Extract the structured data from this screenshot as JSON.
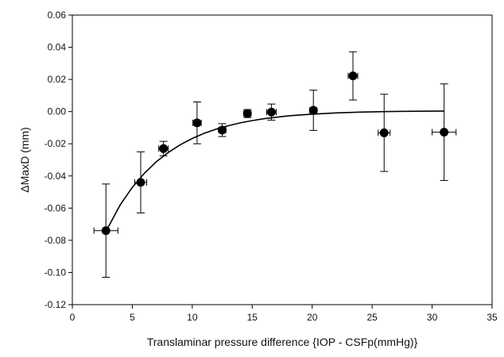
{
  "chart_data": {
    "type": "scatter",
    "xlabel": "Translaminar pressure difference {IOP - CSFp(mmHg)}",
    "ylabel": "ΔMaxD (mm)",
    "xlim": [
      0,
      35
    ],
    "ylim": [
      -0.12,
      0.06
    ],
    "x_ticks": [
      "0",
      "5",
      "10",
      "15",
      "20",
      "25",
      "30",
      "35"
    ],
    "y_ticks": [
      "-0.12",
      "-0.10",
      "-0.08",
      "-0.06",
      "-0.04",
      "-0.02",
      "0.00",
      "0.02",
      "0.04",
      "0.06"
    ],
    "grid": false,
    "legend": false,
    "series": [
      {
        "marker": "filled-circle",
        "color": "#000000",
        "points": [
          {
            "x": 2.8,
            "y": -0.074,
            "y_err": 0.029,
            "x_err": 1.0
          },
          {
            "x": 5.7,
            "y": -0.044,
            "y_err": 0.019,
            "x_err": 0.5
          },
          {
            "x": 7.6,
            "y": -0.023,
            "y_err": 0.0045,
            "x_err": 0.4
          },
          {
            "x": 10.4,
            "y": -0.007,
            "y_err": 0.013,
            "x_err": 0.35
          },
          {
            "x": 12.5,
            "y": -0.0115,
            "y_err": 0.004,
            "x_err": 0.3
          },
          {
            "x": 14.6,
            "y": -0.0012,
            "y_err": 0.0025,
            "x_err": 0.3
          },
          {
            "x": 16.6,
            "y": -0.0003,
            "y_err": 0.005,
            "x_err": 0.4
          },
          {
            "x": 20.1,
            "y": 0.0008,
            "y_err": 0.0125,
            "x_err": 0.3
          },
          {
            "x": 23.4,
            "y": 0.0222,
            "y_err": 0.015,
            "x_err": 0.4
          },
          {
            "x": 26.0,
            "y": -0.0132,
            "y_err": 0.024,
            "x_err": 0.5
          },
          {
            "x": 31.0,
            "y": -0.0128,
            "y_err": 0.03,
            "x_err": 1.0
          }
        ]
      }
    ],
    "fit_curve": {
      "color": "#000000",
      "points": [
        {
          "x": 2.8,
          "y": -0.0745
        },
        {
          "x": 4,
          "y": -0.0579
        },
        {
          "x": 5,
          "y": -0.0471
        },
        {
          "x": 6,
          "y": -0.0384
        },
        {
          "x": 7,
          "y": -0.0312
        },
        {
          "x": 8,
          "y": -0.0254
        },
        {
          "x": 9,
          "y": -0.0206
        },
        {
          "x": 10,
          "y": -0.0167
        },
        {
          "x": 11,
          "y": -0.0135
        },
        {
          "x": 12,
          "y": -0.0109
        },
        {
          "x": 13,
          "y": -0.0088
        },
        {
          "x": 14,
          "y": -0.007
        },
        {
          "x": 15,
          "y": -0.0056
        },
        {
          "x": 16,
          "y": -0.0044
        },
        {
          "x": 17,
          "y": -0.0035
        },
        {
          "x": 18,
          "y": -0.0027
        },
        {
          "x": 19,
          "y": -0.0021
        },
        {
          "x": 20,
          "y": -0.0016
        },
        {
          "x": 22,
          "y": -0.0008
        },
        {
          "x": 24,
          "y": -0.0003
        },
        {
          "x": 26,
          "y": 0.0
        },
        {
          "x": 28,
          "y": 0.0002
        },
        {
          "x": 30,
          "y": 0.0003
        },
        {
          "x": 31,
          "y": 0.0003
        }
      ]
    }
  }
}
